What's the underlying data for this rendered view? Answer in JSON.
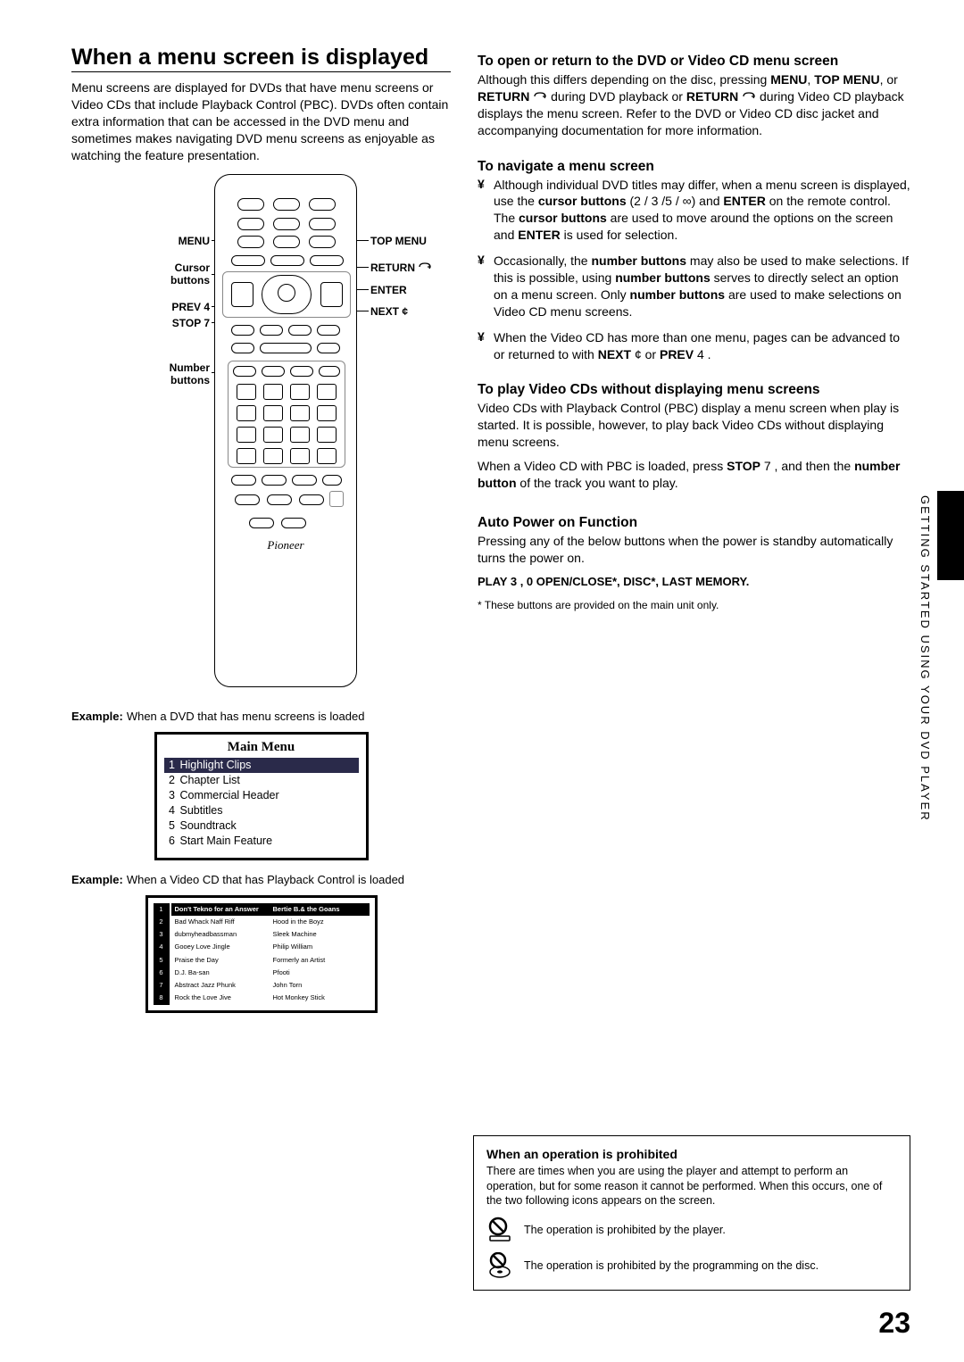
{
  "left": {
    "heading": "When a menu screen is displayed",
    "intro": "Menu screens are displayed for DVDs that have menu screens or Video CDs that include Playback Control (PBC). DVDs often contain extra information that can be accessed in the DVD menu and sometimes makes navigating DVD menu screens as enjoyable as watching the feature presentation.",
    "callouts": {
      "menu": "MENU",
      "cursor": "Cursor\nbuttons",
      "prev": "PREV 4",
      "stop": "STOP 7",
      "number": "Number\nbuttons",
      "topmenu": "TOP MENU",
      "return": "RETURN",
      "enter": "ENTER",
      "next": "NEXT ¢"
    },
    "remote_brand": "Pioneer",
    "example1_label": "Example:",
    "example1_text": "When a DVD that has menu screens is loaded",
    "mainmenu": {
      "title": "Main Menu",
      "items": [
        {
          "n": "1",
          "label": "Highlight Clips"
        },
        {
          "n": "2",
          "label": "Chapter List"
        },
        {
          "n": "3",
          "label": "Commercial Header"
        },
        {
          "n": "4",
          "label": "Subtitles"
        },
        {
          "n": "5",
          "label": "Soundtrack"
        },
        {
          "n": "6",
          "label": "Start Main Feature"
        }
      ]
    },
    "example2_label": "Example:",
    "example2_text": "When a Video CD that has Playback Control is loaded",
    "vcd_rows": [
      {
        "n": "1",
        "c1": "Don't Tekno for an Answer",
        "c2": "Bertie B.& the Goans"
      },
      {
        "n": "2",
        "c1": "Bad Whack Naff Riff",
        "c2": "Hood in the Boyz"
      },
      {
        "n": "3",
        "c1": "dubmyheadbassman",
        "c2": "Sleek Machine"
      },
      {
        "n": "4",
        "c1": "Gooey Love Jingle",
        "c2": "Philip William"
      },
      {
        "n": "5",
        "c1": "Praise the Day",
        "c2": "Formerly an Artist"
      },
      {
        "n": "6",
        "c1": "D.J. Ba-san",
        "c2": "Pfooti"
      },
      {
        "n": "7",
        "c1": "Abstract Jazz Phunk",
        "c2": "John Torn"
      },
      {
        "n": "8",
        "c1": "Rock the Love Jive",
        "c2": "Hot Monkey Stick"
      }
    ]
  },
  "right": {
    "sec1_h": "To open or return to the DVD or Video CD menu screen",
    "sec1_p1a": "Although this differs depending on the disc, pressing ",
    "sec1_menu": "MENU",
    "sec1_comma1": ", ",
    "sec1_topmenu": "TOP MENU",
    "sec1_or1": ", or ",
    "sec1_return": "RETURN",
    "sec1_p1b": " during DVD playback or ",
    "sec1_return2": "RETURN",
    "sec1_p1c": " during Video CD playback displays the menu screen. Refer to the DVD or Video CD disc jacket and accompanying documentation for more information.",
    "sec2_h": "To navigate a menu screen",
    "b1a": "Although individual DVD titles may differ, when a menu screen is displayed, use the ",
    "b1b": "cursor buttons",
    "b1c": " (2 / 3 /5 / ∞) and ",
    "b1d": "ENTER",
    "b1e": " on the remote control. The ",
    "b1f": "cursor buttons",
    "b1g": " are used to move around the options on the screen and ",
    "b1h": "ENTER",
    "b1i": " is used for selection.",
    "b2a": "Occasionally, the ",
    "b2b": "number buttons",
    "b2c": " may also be used to make selections. If this is possible, using ",
    "b2d": "number buttons",
    "b2e": " serves to directly select an option on a menu screen. Only ",
    "b2f": "number buttons",
    "b2g": " are used to make selections on Video CD menu screens.",
    "b3a": "When the Video CD has more than one menu, pages can be advanced to or returned to with ",
    "b3b": "NEXT",
    "b3c": " ¢ or ",
    "b3d": "PREV",
    "b3e": " 4 .",
    "sec3_h": "To play Video CDs without displaying menu screens",
    "sec3_p1": "Video CDs with Playback Control (PBC) display a menu screen when play is started. It is possible, however, to play back Video CDs without displaying menu screens.",
    "sec3_p2a": "When a Video CD with PBC is loaded, press ",
    "sec3_stop": "STOP",
    "sec3_p2b": " 7 , and then the ",
    "sec3_nb": "number button",
    "sec3_p2c": " of the track you want to play.",
    "sec4_h": "Auto Power on Function",
    "sec4_p1": "Pressing any of the below buttons when the power is standby automatically turns the power on.",
    "sec4_list": "PLAY 3 , 0 OPEN/CLOSE*, DISC*, LAST MEMORY.",
    "sec4_note": "* These buttons are provided on the main unit only."
  },
  "side_text": "GETTING STARTED USING YOUR DVD PLAYER",
  "prohibit": {
    "h": "When an operation is prohibited",
    "p": "There are times when you are using the player and attempt to perform an operation, but for some reason it cannot be performed. When this occurs, one of the two following icons appears on the screen.",
    "r1": "The operation is prohibited by the player.",
    "r2": "The operation is prohibited by the programming on the disc."
  },
  "page_number": "23",
  "colors": {
    "text": "#000000",
    "bg": "#ffffff",
    "menu_sel": "#2a2a4a"
  }
}
